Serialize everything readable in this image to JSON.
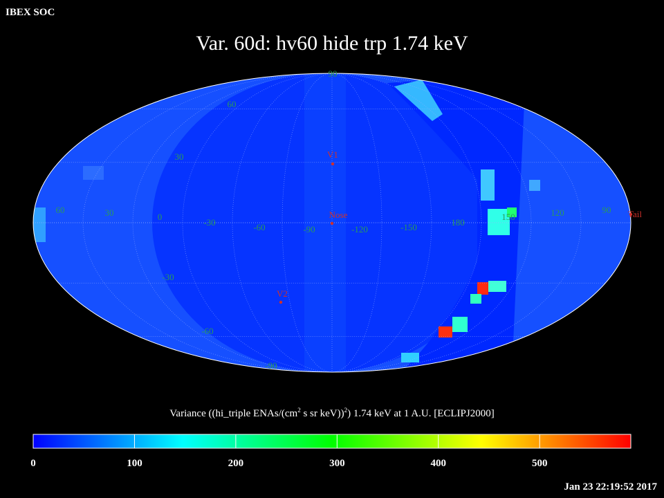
{
  "header": {
    "source": "IBEX SOC",
    "title": "Var. 60d: hv60 hide trp 1.74 keV",
    "timestamp": "Jan 23 22:19:52 2017"
  },
  "map": {
    "latitude_labels": [
      90,
      60,
      30,
      -30,
      -60,
      -90
    ],
    "longitude_labels": [
      60,
      30,
      0,
      -30,
      -60,
      -90,
      -120,
      -150,
      180,
      150,
      120,
      90
    ],
    "markers": [
      {
        "label": "V1"
      },
      {
        "label": "Nose"
      },
      {
        "label": "V2"
      },
      {
        "label": "Tail"
      }
    ]
  },
  "colorbar": {
    "label_parts": [
      "Variance ((hi_triple ENAs/(cm",
      "2",
      " s sr keV))",
      "2",
      ") 1.74 keV at 1 A.U. [ECLIPJ2000]"
    ],
    "lim": [
      0,
      590
    ],
    "ticks": [
      0,
      100,
      200,
      300,
      400,
      500
    ],
    "colors": [
      "#0000ff",
      "#0080ff",
      "#00ffff",
      "#00ff80",
      "#00ff00",
      "#80ff00",
      "#ffff00",
      "#ff8000",
      "#ff0000"
    ]
  }
}
